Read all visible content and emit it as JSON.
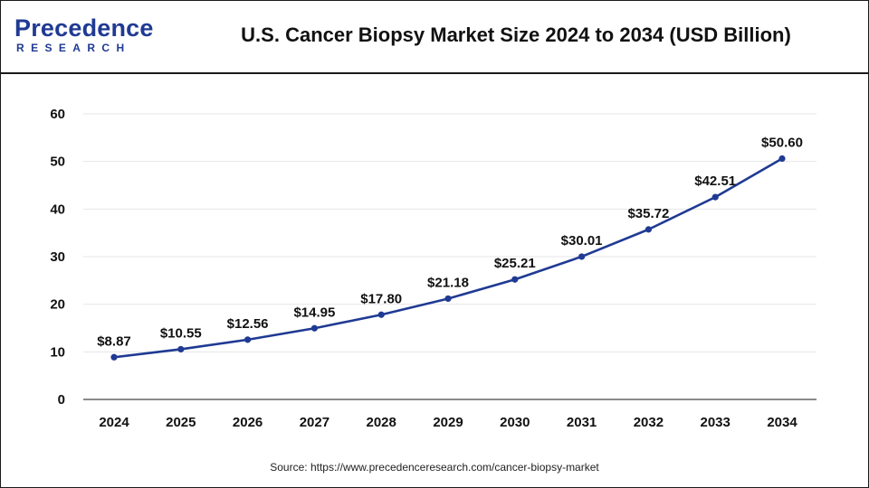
{
  "header": {
    "logo_word": "Precedence",
    "logo_sub": "RESEARCH",
    "title": "U.S. Cancer Biopsy Market Size 2024 to 2034 (USD Billion)"
  },
  "footer": {
    "source": "Source: https://www.precedenceresearch.com/cancer-biopsy-market"
  },
  "colors": {
    "line": "#1f3a93",
    "grid": "#e6e6e6",
    "axis": "#444444",
    "text": "#111111"
  },
  "chart_data": {
    "type": "line",
    "title": "U.S. Cancer Biopsy Market Size 2024 to 2034 (USD Billion)",
    "xlabel": "",
    "ylabel": "",
    "categories": [
      "2024",
      "2025",
      "2026",
      "2027",
      "2028",
      "2029",
      "2030",
      "2031",
      "2032",
      "2033",
      "2034"
    ],
    "series": [
      {
        "name": "U.S. Cancer Biopsy Market Size (USD Billion)",
        "values": [
          8.87,
          10.55,
          12.56,
          14.95,
          17.8,
          21.18,
          25.21,
          30.01,
          35.72,
          42.51,
          50.6
        ]
      }
    ],
    "data_labels": [
      "$8.87",
      "$10.55",
      "$12.56",
      "$14.95",
      "$17.80",
      "$21.18",
      "$25.21",
      "$30.01",
      "$35.72",
      "$42.51",
      "$50.60"
    ],
    "yticks": [
      0,
      10,
      20,
      30,
      40,
      50,
      60
    ],
    "ylim": [
      0,
      60
    ],
    "grid": true,
    "legend": "none"
  }
}
